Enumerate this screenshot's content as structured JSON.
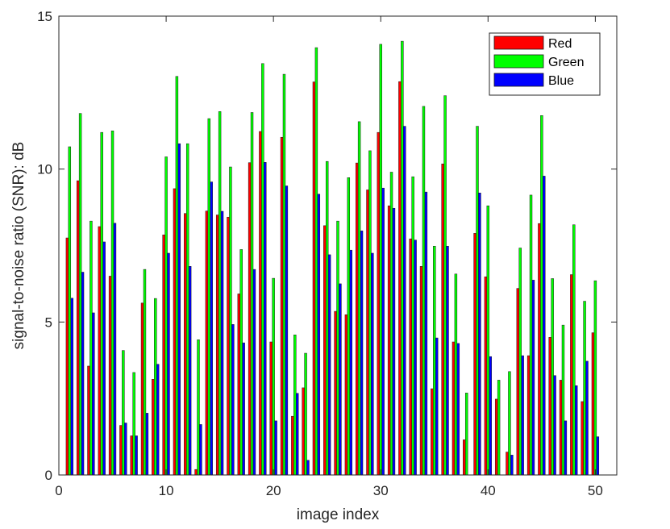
{
  "chart_data": {
    "type": "bar",
    "xlabel": "image index",
    "ylabel": "signal-to-noise ratio (SNR): dB",
    "xlim": [
      0,
      52
    ],
    "ylim": [
      0,
      15
    ],
    "xticks": [
      0,
      10,
      20,
      30,
      40,
      50
    ],
    "yticks": [
      0,
      5,
      10,
      15
    ],
    "legend_position": "top-right",
    "x": [
      1,
      2,
      3,
      4,
      5,
      6,
      7,
      8,
      9,
      10,
      11,
      12,
      13,
      14,
      15,
      16,
      17,
      18,
      19,
      20,
      21,
      22,
      23,
      24,
      25,
      26,
      27,
      28,
      29,
      30,
      31,
      32,
      33,
      34,
      35,
      36,
      37,
      38,
      39,
      40,
      41,
      42,
      43,
      44,
      45,
      46,
      47,
      48,
      49,
      50
    ],
    "series": [
      {
        "name": "Red",
        "color": "#ff0000",
        "values": [
          7.75,
          9.62,
          3.56,
          8.12,
          6.5,
          1.62,
          1.28,
          5.62,
          3.13,
          7.85,
          9.36,
          8.55,
          0.18,
          8.63,
          8.5,
          8.43,
          5.92,
          10.21,
          11.23,
          4.35,
          11.04,
          1.92,
          2.85,
          12.85,
          8.15,
          5.35,
          5.24,
          10.2,
          9.32,
          11.2,
          8.8,
          12.86,
          7.72,
          6.82,
          2.82,
          10.17,
          4.35,
          1.15,
          7.9,
          6.48,
          2.48,
          0.75,
          6.1,
          3.9,
          8.22,
          4.5,
          3.1,
          6.55,
          2.4,
          4.65
        ]
      },
      {
        "name": "Green",
        "color": "#00ff00",
        "values": [
          10.73,
          11.82,
          8.3,
          11.2,
          11.25,
          4.07,
          3.35,
          6.72,
          5.77,
          10.4,
          13.03,
          10.83,
          4.42,
          11.65,
          11.88,
          10.07,
          7.37,
          11.85,
          13.45,
          6.43,
          13.1,
          4.58,
          3.98,
          13.97,
          10.25,
          8.3,
          9.72,
          11.55,
          10.6,
          14.08,
          9.9,
          14.18,
          9.75,
          12.05,
          7.48,
          12.4,
          6.57,
          2.68,
          11.4,
          8.8,
          3.1,
          3.38,
          7.42,
          9.15,
          11.75,
          6.42,
          4.9,
          8.18,
          5.68,
          6.35
        ]
      },
      {
        "name": "Blue",
        "color": "#0000ff",
        "values": [
          5.78,
          6.63,
          5.3,
          7.62,
          8.23,
          1.7,
          1.28,
          2.02,
          3.62,
          7.25,
          10.83,
          6.82,
          1.65,
          9.58,
          8.62,
          4.92,
          4.32,
          6.72,
          10.22,
          1.77,
          9.45,
          2.67,
          0.48,
          9.18,
          7.2,
          6.25,
          7.35,
          7.98,
          7.25,
          9.38,
          8.72,
          11.4,
          7.68,
          9.25,
          4.48,
          7.48,
          4.3,
          0.0,
          9.22,
          3.87,
          0.0,
          0.65,
          3.9,
          6.37,
          9.77,
          3.25,
          1.77,
          2.92,
          3.72,
          1.25
        ]
      }
    ]
  }
}
